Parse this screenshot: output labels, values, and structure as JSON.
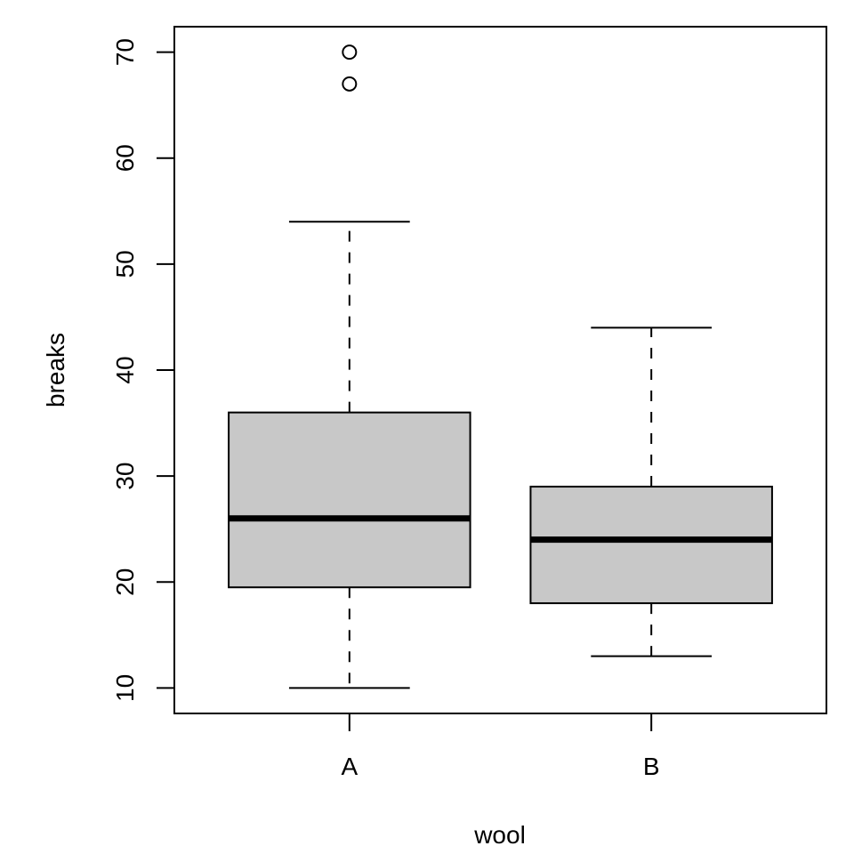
{
  "chart_data": {
    "type": "boxplot",
    "title": "",
    "xlabel": "wool",
    "ylabel": "breaks",
    "ylim": [
      7.6,
      72.4
    ],
    "yticks": [
      10,
      20,
      30,
      40,
      50,
      60,
      70
    ],
    "ytick_labels": [
      "10",
      "20",
      "30",
      "40",
      "50",
      "60",
      "70"
    ],
    "categories": [
      "A",
      "B"
    ],
    "box_fill": "#c8c8c8",
    "grid": false,
    "legend": "none",
    "boxes": [
      {
        "category": "A",
        "lower_whisker": 10,
        "q1": 19.5,
        "median": 26,
        "q3": 36,
        "upper_whisker": 54,
        "outliers": [
          67,
          70
        ]
      },
      {
        "category": "B",
        "lower_whisker": 13,
        "q1": 18,
        "median": 24,
        "q3": 29,
        "upper_whisker": 44,
        "outliers": []
      }
    ]
  }
}
